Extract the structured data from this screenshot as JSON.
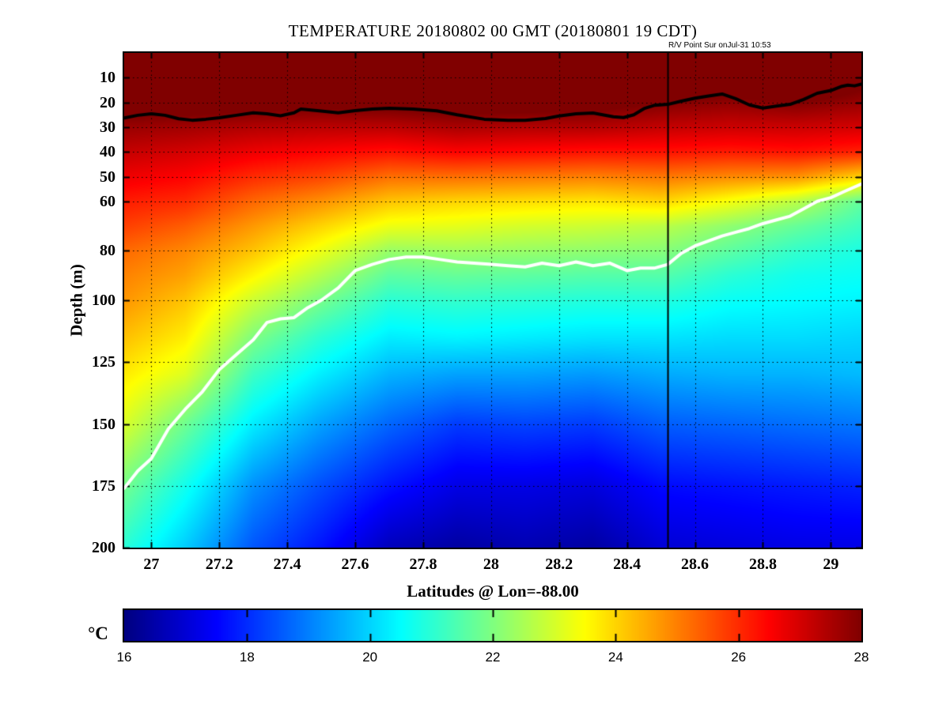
{
  "title": "TEMPERATURE 20180802 00 GMT (20180801 19 CDT)",
  "annotation": {
    "text": "R/V Point Sur onJul-31 10:53"
  },
  "axes": {
    "xlabel": "Latitudes @ Lon=-88.00",
    "ylabel": "Depth (m)",
    "xlim": [
      26.92,
      29.09
    ],
    "ylim": [
      0,
      200
    ],
    "xticks": [
      27,
      27.2,
      27.4,
      27.6,
      27.8,
      28,
      28.2,
      28.4,
      28.6,
      28.8,
      29
    ],
    "xtick_labels": [
      "27",
      "27.2",
      "27.4",
      "27.6",
      "27.8",
      "28",
      "28.2",
      "28.4",
      "28.6",
      "28.8",
      "29"
    ],
    "yticks": [
      10,
      20,
      30,
      40,
      50,
      60,
      80,
      100,
      125,
      150,
      175,
      200
    ],
    "grid_style": "dotted"
  },
  "colorbar": {
    "unit_label": "°C",
    "min": 16,
    "max": 28,
    "ticks": [
      16,
      18,
      20,
      22,
      24,
      26,
      28
    ],
    "colormap": "jet"
  },
  "colors": {
    "background": "#ffffff",
    "frame": "#000000",
    "grid": "#000000",
    "deep_min_color": "#00008f",
    "surface_max_color": "#800000"
  },
  "chart_data": {
    "type": "heatmap",
    "xlabel_units": "degrees latitude",
    "ylabel_units": "m depth",
    "x_lats": [
      26.9,
      27.1,
      27.3,
      27.5,
      27.7,
      27.9,
      28.1,
      28.3,
      28.5,
      28.7,
      28.9,
      29.1
    ],
    "y_depths": [
      0,
      10,
      20,
      30,
      40,
      50,
      60,
      70,
      80,
      90,
      100,
      115,
      130,
      150,
      175,
      200
    ],
    "temperature_c": [
      [
        29.5,
        29.5,
        29.5,
        29.5,
        29.5,
        29.5,
        29.5,
        29.5,
        29.6,
        29.7,
        29.6,
        29.8
      ],
      [
        29.2,
        29.2,
        29.1,
        29.1,
        29.1,
        29.2,
        29.2,
        29.2,
        29.0,
        28.7,
        29.0,
        28.2
      ],
      [
        28.4,
        28.4,
        28.3,
        28.2,
        28.3,
        28.4,
        28.4,
        28.3,
        28.0,
        27.8,
        28.0,
        27.7
      ],
      [
        27.7,
        27.6,
        27.4,
        27.3,
        27.3,
        27.5,
        27.4,
        27.4,
        27.2,
        27.1,
        27.1,
        27.0
      ],
      [
        27.2,
        27.0,
        26.7,
        26.5,
        26.3,
        26.5,
        26.4,
        26.3,
        26.3,
        26.2,
        26.3,
        26.1
      ],
      [
        26.7,
        26.5,
        26.0,
        25.7,
        25.2,
        25.2,
        25.1,
        25.0,
        25.1,
        24.9,
        24.8,
        24.0
      ],
      [
        26.2,
        26.0,
        25.3,
        24.8,
        24.2,
        24.0,
        23.9,
        23.8,
        24.0,
        23.4,
        22.7,
        21.6
      ],
      [
        25.8,
        25.4,
        24.7,
        24.0,
        23.3,
        23.2,
        23.0,
        22.9,
        22.7,
        22.2,
        21.7,
        21.2
      ],
      [
        25.3,
        24.9,
        24.2,
        23.3,
        22.3,
        22.4,
        22.3,
        22.2,
        22.1,
        21.6,
        21.1,
        20.8
      ],
      [
        25.0,
        24.6,
        23.6,
        22.6,
        21.6,
        21.7,
        21.6,
        21.5,
        21.5,
        21.0,
        20.7,
        20.6
      ],
      [
        24.8,
        24.2,
        22.9,
        21.9,
        21.0,
        21.1,
        21.0,
        20.9,
        20.9,
        20.6,
        20.5,
        20.4
      ],
      [
        24.3,
        23.7,
        22.0,
        21.0,
        20.3,
        20.4,
        20.3,
        20.2,
        20.2,
        20.1,
        20.1,
        20.0
      ],
      [
        23.8,
        23.1,
        21.2,
        20.3,
        19.6,
        19.4,
        19.4,
        19.3,
        19.5,
        19.6,
        19.6,
        19.7
      ],
      [
        23.2,
        21.8,
        20.3,
        19.4,
        18.7,
        18.2,
        18.3,
        18.2,
        18.6,
        18.7,
        18.8,
        18.9
      ],
      [
        22.0,
        20.7,
        19.2,
        18.4,
        17.7,
        17.2,
        17.2,
        17.1,
        17.6,
        17.7,
        17.8,
        17.9
      ],
      [
        21.1,
        19.9,
        18.5,
        17.7,
        16.7,
        16.4,
        16.6,
        16.4,
        17.0,
        17.1,
        17.2,
        17.2
      ]
    ],
    "contours": [
      {
        "name": "black-contour",
        "level_c": 28,
        "color": "#000000",
        "width": 4,
        "points": [
          [
            26.92,
            26.3
          ],
          [
            26.96,
            25.2
          ],
          [
            27.0,
            24.6
          ],
          [
            27.04,
            25.2
          ],
          [
            27.08,
            26.6
          ],
          [
            27.12,
            27.2
          ],
          [
            27.16,
            26.8
          ],
          [
            27.2,
            26.2
          ],
          [
            27.25,
            25.2
          ],
          [
            27.3,
            24.2
          ],
          [
            27.34,
            24.6
          ],
          [
            27.38,
            25.4
          ],
          [
            27.42,
            24.2
          ],
          [
            27.44,
            22.7
          ],
          [
            27.5,
            23.5
          ],
          [
            27.55,
            24.2
          ],
          [
            27.6,
            23.3
          ],
          [
            27.65,
            22.7
          ],
          [
            27.7,
            22.4
          ],
          [
            27.77,
            22.7
          ],
          [
            27.84,
            23.4
          ],
          [
            27.9,
            25.0
          ],
          [
            27.98,
            26.8
          ],
          [
            28.05,
            27.2
          ],
          [
            28.1,
            27.2
          ],
          [
            28.16,
            26.5
          ],
          [
            28.2,
            25.5
          ],
          [
            28.25,
            24.6
          ],
          [
            28.3,
            24.3
          ],
          [
            28.36,
            25.8
          ],
          [
            28.39,
            26.1
          ],
          [
            28.42,
            25.0
          ],
          [
            28.45,
            22.5
          ],
          [
            28.48,
            21.2
          ],
          [
            28.52,
            20.8
          ],
          [
            28.56,
            19.5
          ],
          [
            28.6,
            18.3
          ],
          [
            28.64,
            17.4
          ],
          [
            28.68,
            16.6
          ],
          [
            28.72,
            18.5
          ],
          [
            28.76,
            21.0
          ],
          [
            28.8,
            22.3
          ],
          [
            28.84,
            21.5
          ],
          [
            28.88,
            20.8
          ],
          [
            28.92,
            18.8
          ],
          [
            28.96,
            16.3
          ],
          [
            29.0,
            15.2
          ],
          [
            29.03,
            13.6
          ],
          [
            29.05,
            13.0
          ],
          [
            29.07,
            13.3
          ],
          [
            29.09,
            12.6
          ]
        ]
      },
      {
        "name": "white-contour",
        "level_c": 22,
        "color": "#ffffff",
        "width": 4,
        "points": [
          [
            26.92,
            176
          ],
          [
            26.96,
            169
          ],
          [
            27.0,
            164
          ],
          [
            27.05,
            152
          ],
          [
            27.1,
            144
          ],
          [
            27.15,
            137
          ],
          [
            27.2,
            128
          ],
          [
            27.25,
            122
          ],
          [
            27.3,
            116
          ],
          [
            27.34,
            109
          ],
          [
            27.38,
            107.5
          ],
          [
            27.42,
            107
          ],
          [
            27.46,
            103
          ],
          [
            27.5,
            100
          ],
          [
            27.55,
            95
          ],
          [
            27.6,
            88
          ],
          [
            27.65,
            85.5
          ],
          [
            27.7,
            83.5
          ],
          [
            27.75,
            82.5
          ],
          [
            27.8,
            82.5
          ],
          [
            27.85,
            83.5
          ],
          [
            27.9,
            84.5
          ],
          [
            27.95,
            85
          ],
          [
            28.0,
            85.5
          ],
          [
            28.05,
            86
          ],
          [
            28.1,
            86.5
          ],
          [
            28.15,
            85
          ],
          [
            28.2,
            86
          ],
          [
            28.25,
            84.5
          ],
          [
            28.3,
            86
          ],
          [
            28.35,
            85
          ],
          [
            28.4,
            88
          ],
          [
            28.44,
            87
          ],
          [
            28.48,
            87
          ],
          [
            28.52,
            85.5
          ],
          [
            28.56,
            81
          ],
          [
            28.6,
            78
          ],
          [
            28.64,
            76
          ],
          [
            28.68,
            74
          ],
          [
            28.72,
            72.5
          ],
          [
            28.76,
            71
          ],
          [
            28.8,
            69
          ],
          [
            28.84,
            67.5
          ],
          [
            28.88,
            66
          ],
          [
            28.92,
            63
          ],
          [
            28.96,
            60
          ],
          [
            29.0,
            58.5
          ],
          [
            29.04,
            56
          ],
          [
            29.09,
            53
          ]
        ]
      }
    ],
    "ship_line": {
      "lat": 28.52,
      "color": "#000000",
      "width": 2
    }
  }
}
